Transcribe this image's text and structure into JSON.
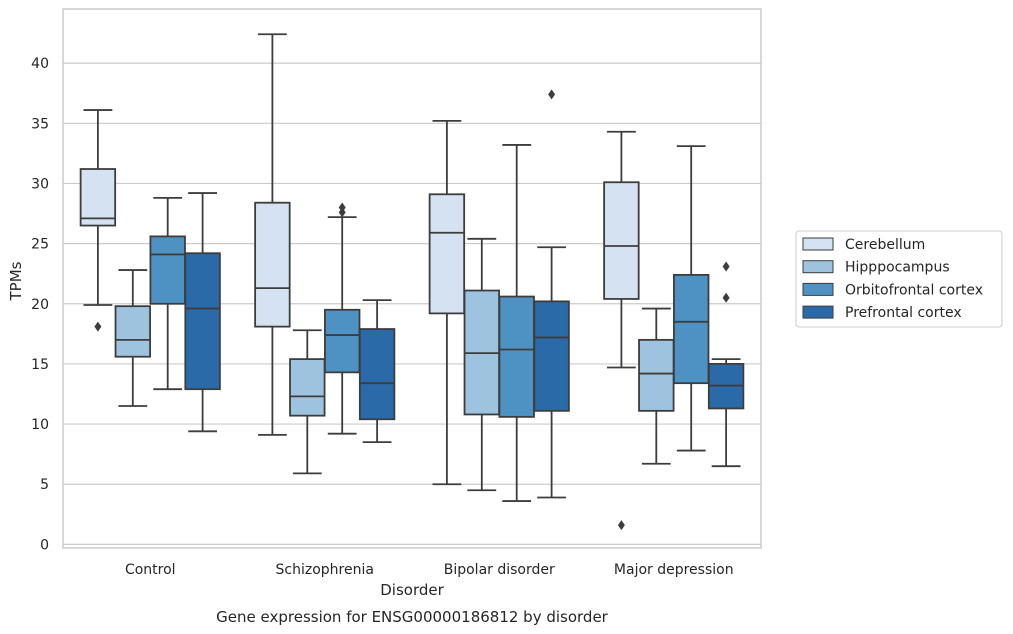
{
  "chart_data": {
    "type": "box",
    "title": "",
    "caption": "Gene expression for ENSG00000186812 by disorder",
    "xlabel": "Disorder",
    "ylabel": "TPMs",
    "ylim": [
      -0.3,
      44.5
    ],
    "yticks": [
      0,
      5,
      10,
      15,
      20,
      25,
      30,
      35,
      40
    ],
    "grid": "horizontal",
    "legend_position": "right",
    "categories": [
      "Control",
      "Schizophrenia",
      "Bipolar disorder",
      "Major depression"
    ],
    "series": [
      {
        "name": "Cerebellum",
        "color": "#d4e2f1",
        "boxes": [
          {
            "whislo": 19.9,
            "q1": 26.5,
            "med": 27.1,
            "q3": 31.2,
            "whishi": 36.1,
            "fliers": [
              18.1
            ]
          },
          {
            "whislo": 9.1,
            "q1": 18.1,
            "med": 21.3,
            "q3": 28.4,
            "whishi": 42.4,
            "fliers": []
          },
          {
            "whislo": 5.0,
            "q1": 19.2,
            "med": 25.9,
            "q3": 29.1,
            "whishi": 35.2,
            "fliers": []
          },
          {
            "whislo": 14.7,
            "q1": 20.4,
            "med": 24.8,
            "q3": 30.1,
            "whishi": 34.3,
            "fliers": [
              1.6
            ]
          }
        ]
      },
      {
        "name": "Hipppocampus",
        "color": "#9dc3df",
        "boxes": [
          {
            "whislo": 11.5,
            "q1": 15.6,
            "med": 17.0,
            "q3": 19.8,
            "whishi": 22.8,
            "fliers": []
          },
          {
            "whislo": 5.9,
            "q1": 10.7,
            "med": 12.3,
            "q3": 15.4,
            "whishi": 17.8,
            "fliers": []
          },
          {
            "whislo": 4.5,
            "q1": 10.8,
            "med": 15.9,
            "q3": 21.1,
            "whishi": 25.4,
            "fliers": []
          },
          {
            "whislo": 6.7,
            "q1": 11.1,
            "med": 14.2,
            "q3": 17.0,
            "whishi": 19.6,
            "fliers": []
          }
        ]
      },
      {
        "name": "Orbitofrontal cortex",
        "color": "#4e92c4",
        "boxes": [
          {
            "whislo": 12.9,
            "q1": 20.0,
            "med": 24.1,
            "q3": 25.6,
            "whishi": 28.8,
            "fliers": []
          },
          {
            "whislo": 9.2,
            "q1": 14.3,
            "med": 17.4,
            "q3": 19.5,
            "whishi": 27.2,
            "fliers": [
              27.6,
              28.0
            ]
          },
          {
            "whislo": 3.6,
            "q1": 10.6,
            "med": 16.2,
            "q3": 20.6,
            "whishi": 33.2,
            "fliers": []
          },
          {
            "whislo": 7.8,
            "q1": 13.4,
            "med": 18.5,
            "q3": 22.4,
            "whishi": 33.1,
            "fliers": []
          }
        ]
      },
      {
        "name": "Prefrontal cortex",
        "color": "#2b6aa8",
        "boxes": [
          {
            "whislo": 9.4,
            "q1": 12.9,
            "med": 19.6,
            "q3": 24.2,
            "whishi": 29.2,
            "fliers": []
          },
          {
            "whislo": 8.5,
            "q1": 10.4,
            "med": 13.4,
            "q3": 17.9,
            "whishi": 20.3,
            "fliers": []
          },
          {
            "whislo": 3.9,
            "q1": 11.1,
            "med": 17.2,
            "q3": 20.2,
            "whishi": 24.7,
            "fliers": [
              37.4
            ]
          },
          {
            "whislo": 6.5,
            "q1": 11.3,
            "med": 13.2,
            "q3": 15.0,
            "whishi": 15.4,
            "fliers": [
              20.5,
              23.1
            ]
          }
        ]
      }
    ]
  }
}
